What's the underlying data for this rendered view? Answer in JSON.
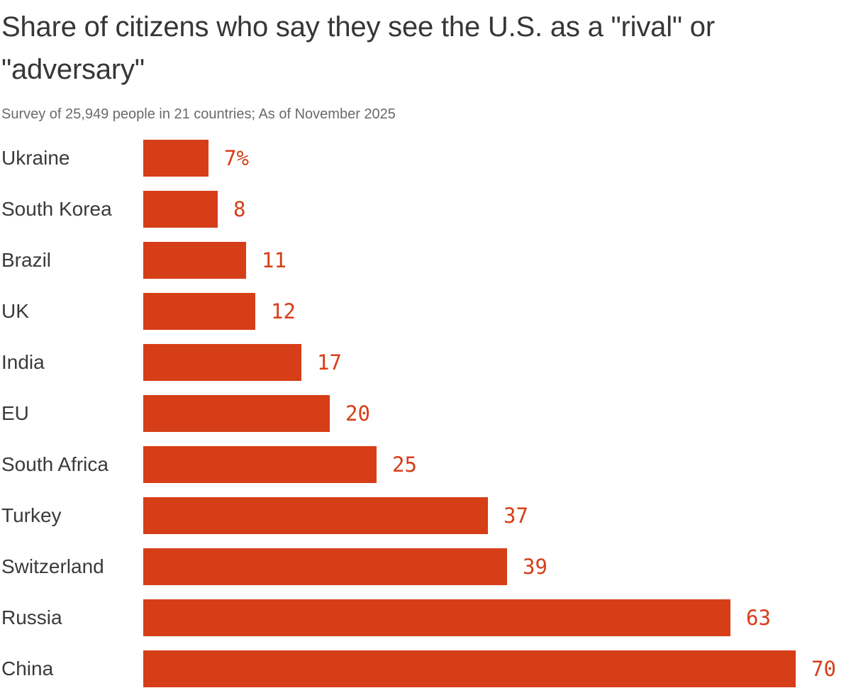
{
  "header": {
    "title": "Share of citizens who say they see the U.S. as a \"rival\" or \"adversary\"",
    "title_lines": [
      "Share of citizens who say they see the U.S. as a \"rival\" or",
      "\"adversary\""
    ],
    "subtitle": "Survey of 25,949 people in 21 countries; As of November 2025"
  },
  "chart_data": {
    "type": "bar",
    "orientation": "horizontal",
    "title": "Share of citizens who say they see the U.S. as a \"rival\" or \"adversary\"",
    "subtitle": "Survey of 25,949 people in 21 countries; As of November 2025",
    "categories": [
      "Ukraine",
      "South Korea",
      "Brazil",
      "UK",
      "India",
      "EU",
      "South Africa",
      "Turkey",
      "Switzerland",
      "Russia",
      "China"
    ],
    "values": [
      7,
      8,
      11,
      12,
      17,
      20,
      25,
      37,
      39,
      63,
      70
    ],
    "value_labels": [
      "7%",
      "8",
      "11",
      "12",
      "17",
      "20",
      "25",
      "37",
      "39",
      "63",
      "70"
    ],
    "unit": "percent",
    "xlim": [
      0,
      70
    ],
    "grid": "off",
    "legend": "none",
    "bar_color": "#D63E18",
    "value_label_color": "#D63E18",
    "category_label_color": "#3A3A3A"
  }
}
